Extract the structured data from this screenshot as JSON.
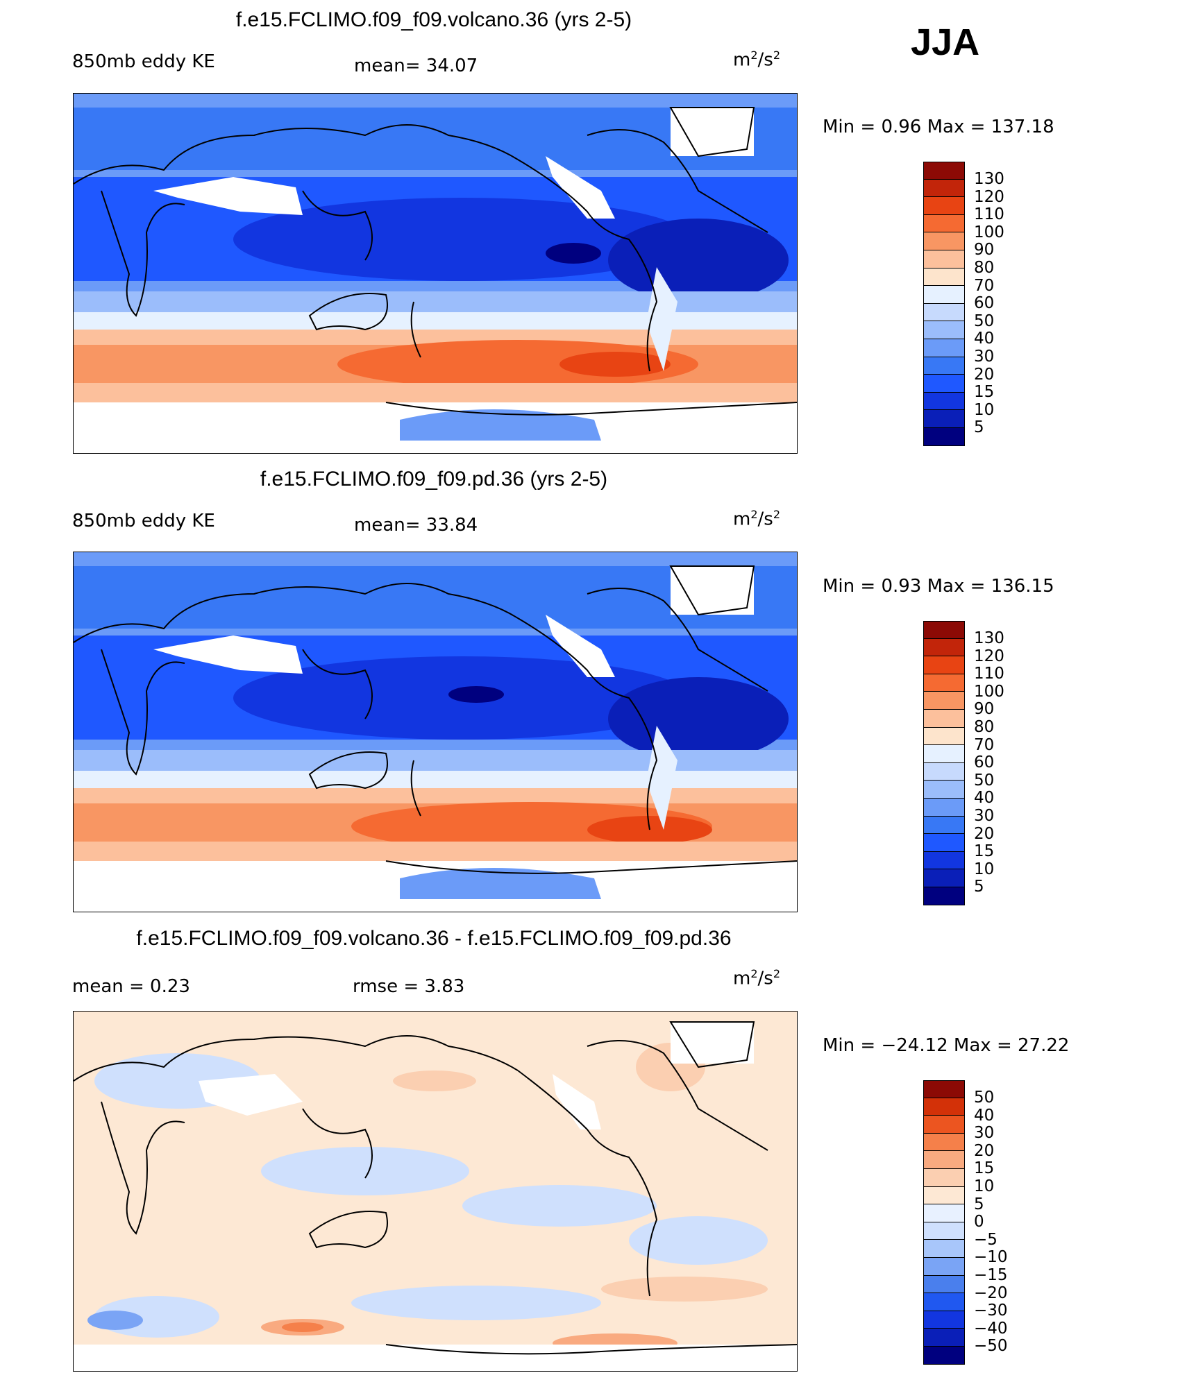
{
  "season": "JJA",
  "colors": {
    "abs_scale": [
      "#00007f",
      "#0a1fb8",
      "#1236e0",
      "#1f58ff",
      "#3878f5",
      "#6b9bf8",
      "#9bbdfb",
      "#c7dafd",
      "#e6f1ff",
      "#fde4cc",
      "#fcc09c",
      "#f89663",
      "#f56a32",
      "#e84413",
      "#c2250a",
      "#8c0a05"
    ],
    "diff_scale": [
      "#00007f",
      "#0a1fb8",
      "#1236e0",
      "#2058f0",
      "#4a7fed",
      "#7aa4f5",
      "#a8c6fa",
      "#cfe0fd",
      "#e8f1ff",
      "#fde8d4",
      "#fbcfb1",
      "#f9aa80",
      "#f5804a",
      "#ec5520",
      "#d33108",
      "#8c0a05"
    ]
  },
  "panels": [
    {
      "id": "volcano",
      "title": "f.e15.FCLIMO.f09_f09.volcano.36 (yrs 2-5)",
      "left_label": "850mb eddy KE",
      "center_label": "mean=  34.07",
      "units_base": "m",
      "units_sup1": "2",
      "units_mid": "/s",
      "units_sup2": "2",
      "minmax": "Min =   0.96 Max = 137.18",
      "colorbar_labels": [
        "130",
        "120",
        "110",
        "100",
        "90",
        "80",
        "70",
        "60",
        "50",
        "40",
        "30",
        "20",
        "15",
        "10",
        "5"
      ]
    },
    {
      "id": "pd",
      "title": "f.e15.FCLIMO.f09_f09.pd.36 (yrs 2-5)",
      "left_label": "850mb eddy KE",
      "center_label": "mean=  33.84",
      "units_base": "m",
      "units_sup1": "2",
      "units_mid": "/s",
      "units_sup2": "2",
      "minmax": "Min =   0.93 Max = 136.15",
      "colorbar_labels": [
        "130",
        "120",
        "110",
        "100",
        "90",
        "80",
        "70",
        "60",
        "50",
        "40",
        "30",
        "20",
        "15",
        "10",
        "5"
      ]
    },
    {
      "id": "diff",
      "title": "f.e15.FCLIMO.f09_f09.volcano.36 - f.e15.FCLIMO.f09_f09.pd.36",
      "left_label": "mean =   0.23",
      "center_label": "rmse =   3.83",
      "units_base": "m",
      "units_sup1": "2",
      "units_mid": "/s",
      "units_sup2": "2",
      "minmax": "Min = −24.12 Max =  27.22",
      "colorbar_labels": [
        "50",
        "40",
        "30",
        "20",
        "15",
        "10",
        "5",
        "0",
        "−5",
        "−10",
        "−15",
        "−20",
        "−30",
        "−40",
        "−50"
      ]
    }
  ]
}
